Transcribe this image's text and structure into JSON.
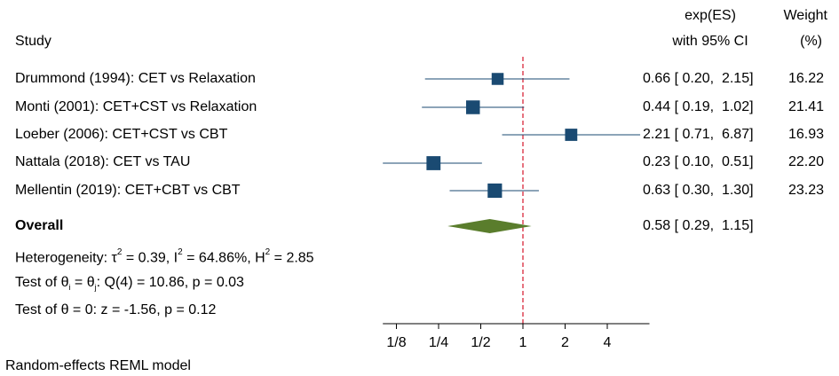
{
  "header": {
    "study_label": "Study",
    "effect_label_line1": "exp(ES)",
    "effect_label_line2": "with 95% CI",
    "weight_label_line1": "Weight",
    "weight_label_line2": "(%)"
  },
  "chart_data": {
    "type": "forest",
    "x_scale": "log2",
    "xlim": [
      0.1,
      8
    ],
    "null_line": 1,
    "x_ticks": [
      0.125,
      0.25,
      0.5,
      1,
      2,
      4
    ],
    "x_tick_labels": [
      "1/8",
      "1/4",
      "1/2",
      "1",
      "2",
      "4"
    ],
    "studies": [
      {
        "label": "Drummond (1994): CET vs Relaxation",
        "es": 0.66,
        "lo": 0.2,
        "hi": 2.15,
        "ci_text": "0.66 [ 0.20,  2.15]",
        "weight": 16.22,
        "weight_text": "16.22"
      },
      {
        "label": "Monti (2001): CET+CST vs Relaxation",
        "es": 0.44,
        "lo": 0.19,
        "hi": 1.02,
        "ci_text": "0.44 [ 0.19,  1.02]",
        "weight": 21.41,
        "weight_text": "21.41"
      },
      {
        "label": "Loeber (2006): CET+CST vs CBT",
        "es": 2.21,
        "lo": 0.71,
        "hi": 6.87,
        "ci_text": "2.21 [ 0.71,  6.87]",
        "weight": 16.93,
        "weight_text": "16.93"
      },
      {
        "label": "Nattala (2018): CET vs TAU",
        "es": 0.23,
        "lo": 0.1,
        "hi": 0.51,
        "ci_text": "0.23 [ 0.10,  0.51]",
        "weight": 22.2,
        "weight_text": "22.20"
      },
      {
        "label": "Mellentin (2019): CET+CBT vs CBT",
        "es": 0.63,
        "lo": 0.3,
        "hi": 1.3,
        "ci_text": "0.63 [ 0.30,  1.30]",
        "weight": 23.23,
        "weight_text": "23.23"
      }
    ],
    "overall": {
      "label": "Overall",
      "es": 0.58,
      "lo": 0.29,
      "hi": 1.15,
      "ci_text": "0.58 [ 0.29,  1.15]"
    },
    "heterogeneity": {
      "prefix": "Heterogeneity: ",
      "tau_symbol": "τ",
      "tau_value": " = 0.39, ",
      "i_symbol": "I",
      "i_value": " = 64.86%, ",
      "h_symbol": "H",
      "h_value": " = 2.85"
    },
    "test_equal": {
      "prefix": "Test of θ",
      "sub_i": "i",
      "mid": " = θ",
      "sub_j": "j",
      "rest": ": Q(4) = 10.86, p = 0.03"
    },
    "test_zero": "Test of θ = 0: z = -1.56, p = 0.12",
    "footnote": "Random-effects REML model",
    "colors": {
      "marker": "#1a4a72",
      "ci_line": "#1a4a72",
      "diamond": "#5a7d2c",
      "null_line": "#d9263a",
      "axis": "#000000"
    }
  }
}
